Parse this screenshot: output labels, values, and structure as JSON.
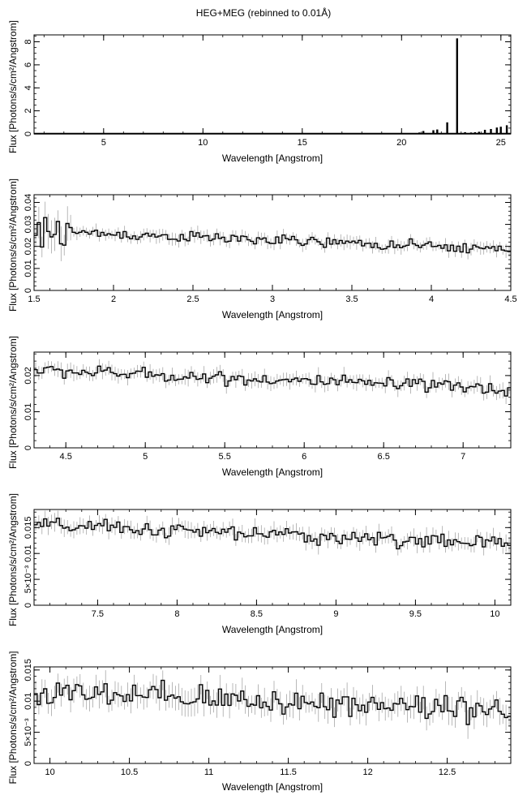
{
  "figure": {
    "title": "HEG+MEG (rebinned to 0.01Å)"
  },
  "chart_data": [
    {
      "type": "line",
      "style": "histogram-step-with-errorbars",
      "xlabel": "Wavelength [Angstrom]",
      "ylabel": "Flux [Photons/s/cm²/Angstrom]",
      "xlim": [
        1.5,
        25.5
      ],
      "ylim": [
        0,
        8.6
      ],
      "xticks": [
        5,
        10,
        15,
        20,
        25
      ],
      "yticks": [
        0,
        2,
        4,
        6,
        8
      ],
      "ytick_labels": [
        "0",
        "2",
        "4",
        "6",
        "8"
      ],
      "continuum": {
        "start": 0.022,
        "end": 0.012
      },
      "lines": [
        {
          "x": 20.9,
          "y": 0.12
        },
        {
          "x": 21.1,
          "y": 0.25
        },
        {
          "x": 21.6,
          "y": 0.32
        },
        {
          "x": 21.8,
          "y": 0.38
        },
        {
          "x": 22.3,
          "y": 1.0
        },
        {
          "x": 22.8,
          "y": 8.3
        },
        {
          "x": 23.2,
          "y": 0.15
        },
        {
          "x": 23.5,
          "y": 0.12
        },
        {
          "x": 23.7,
          "y": 0.14
        },
        {
          "x": 23.9,
          "y": 0.18
        },
        {
          "x": 24.2,
          "y": 0.35
        },
        {
          "x": 24.5,
          "y": 0.42
        },
        {
          "x": 24.8,
          "y": 0.55
        },
        {
          "x": 25.0,
          "y": 0.62
        },
        {
          "x": 25.3,
          "y": 0.75
        }
      ]
    },
    {
      "type": "line",
      "style": "histogram-step-with-errorbars",
      "xlabel": "Wavelength [Angstrom]",
      "ylabel": "Flux [Photons/s/cm²/Angstrom]",
      "xlim": [
        1.5,
        4.5
      ],
      "ylim": [
        0,
        0.0435
      ],
      "xticks": [
        1.5,
        2,
        2.5,
        3,
        3.5,
        4,
        4.5
      ],
      "yticks": [
        0,
        0.01,
        0.02,
        0.03,
        0.04
      ],
      "ytick_labels": [
        "0",
        "0.01",
        "0.02",
        "0.03",
        "0.04"
      ],
      "continuum": {
        "start": 0.027,
        "end": 0.0185
      },
      "noise": 0.0012,
      "errbar": 0.0025
    },
    {
      "type": "line",
      "style": "histogram-step-with-errorbars",
      "xlabel": "Wavelength [Angstrom]",
      "ylabel": "Flux [Photons/s/cm²/Angstrom]",
      "xlim": [
        4.3,
        7.3
      ],
      "ylim": [
        0,
        0.0265
      ],
      "xticks": [
        4.5,
        5,
        5.5,
        6,
        6.5,
        7
      ],
      "yticks": [
        0,
        0.01,
        0.02
      ],
      "ytick_labels": [
        "0",
        "0.01",
        "0.02"
      ],
      "continuum": {
        "start": 0.0215,
        "end": 0.0162
      },
      "noise": 0.0009,
      "errbar": 0.0018
    },
    {
      "type": "line",
      "style": "histogram-step-with-errorbars",
      "xlabel": "Wavelength [Angstrom]",
      "ylabel": "Flux [Photons/s/cm²/Angstrom]",
      "xlim": [
        7.1,
        10.1
      ],
      "ylim": [
        0,
        0.0185
      ],
      "xticks": [
        7.5,
        8,
        8.5,
        9,
        9.5,
        10
      ],
      "yticks": [
        0,
        0.005,
        0.01,
        0.015
      ],
      "ytick_labels": [
        "0",
        "5×10⁻³",
        "0.01",
        "0.015"
      ],
      "continuum": {
        "start": 0.0155,
        "end": 0.0118
      },
      "noise": 0.0007,
      "errbar": 0.0014
    },
    {
      "type": "line",
      "style": "histogram-step-with-errorbars",
      "xlabel": "Wavelength [Angstrom]",
      "ylabel": "Flux [Photons/s/cm²/Angstrom]",
      "xlim": [
        9.9,
        12.9
      ],
      "ylim": [
        0,
        0.0155
      ],
      "xticks": [
        10,
        10.5,
        11,
        11.5,
        12,
        12.5
      ],
      "yticks": [
        0,
        0.005,
        0.01,
        0.015
      ],
      "ytick_labels": [
        "0",
        "5×10⁻³",
        "0.01",
        "0.015"
      ],
      "continuum": {
        "start": 0.0112,
        "end": 0.0088
      },
      "noise": 0.0011,
      "errbar": 0.0018
    }
  ]
}
